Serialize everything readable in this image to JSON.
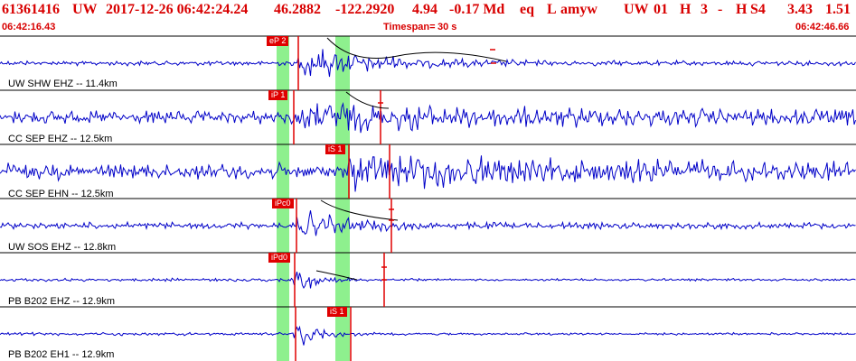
{
  "header": {
    "event_id": "61361416",
    "network": "UW",
    "datetime": "2017-12-26 06:42:24.24",
    "lat": "46.2882",
    "lon": "-122.2920",
    "depth": "4.94",
    "magnitude": "-0.17 Md",
    "etype": "eq",
    "origin": "L",
    "author": "amyw",
    "source": "UW",
    "version": "01",
    "quality": "H",
    "nphases": "3",
    "dash": "-",
    "hflag": "H",
    "s4": "S4",
    "num_a": "3.43",
    "num_b": "1.51"
  },
  "time_start": "06:42:16.43",
  "timespan_label": "Timespan=",
  "timespan_value": "30 s",
  "time_end": "06:42:46.66",
  "colors": {
    "header": "#d80000",
    "trace": "#0000c8",
    "pick": "#e00000",
    "window": "#8ef08e"
  },
  "traces": [
    {
      "label": "UW SHW EHZ -- 11.4km",
      "picks": [
        "eP 2"
      ]
    },
    {
      "label": "CC SEP EHZ -- 12.5km",
      "picks": [
        "iP 1"
      ]
    },
    {
      "label": "CC SEP EHN -- 12.5km",
      "picks": [
        "iS 1"
      ]
    },
    {
      "label": "UW SOS EHZ -- 12.8km",
      "picks": [
        "iPc0"
      ]
    },
    {
      "label": "PB B202 EHZ -- 12.9km",
      "picks": [
        "iPd0"
      ]
    },
    {
      "label": "PB B202 EH1 -- 12.9km",
      "picks": [
        "iS 1"
      ]
    }
  ]
}
